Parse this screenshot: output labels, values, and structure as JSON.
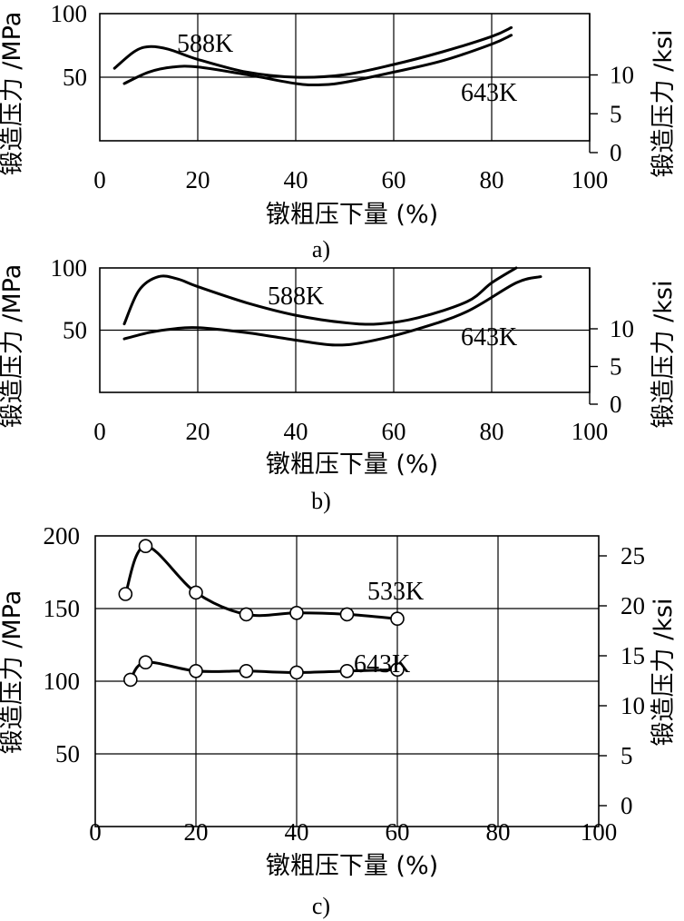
{
  "chart_data": [
    {
      "type": "line",
      "panel_label": "a)",
      "xlabel": "镦粗压下量 (%)",
      "ylabel": "锻造压力 /MPa",
      "ylabel_right": "锻造压力 /ksi",
      "xlim": [
        0,
        100
      ],
      "ylim": [
        0,
        100
      ],
      "x_ticks": [
        "0",
        "20",
        "40",
        "60",
        "80",
        "100"
      ],
      "y_ticks": [
        "50",
        "100"
      ],
      "y_ticks_right": [
        "0",
        "5",
        "10"
      ],
      "grid": true,
      "series": [
        {
          "name": "588K",
          "x": [
            3,
            7,
            10,
            14,
            20,
            30,
            40,
            50,
            60,
            70,
            80,
            84
          ],
          "y": [
            57,
            70,
            74,
            72,
            64,
            54,
            50,
            52,
            60,
            70,
            82,
            89
          ]
        },
        {
          "name": "643K",
          "x": [
            5,
            10,
            15,
            20,
            30,
            40,
            45,
            50,
            60,
            70,
            80,
            84
          ],
          "y": [
            45,
            54,
            58,
            58,
            52,
            45,
            44,
            46,
            54,
            63,
            76,
            83
          ]
        }
      ]
    },
    {
      "type": "line",
      "panel_label": "b)",
      "xlabel": "镦粗压下量 (%)",
      "ylabel": "锻造压力 /MPa",
      "ylabel_right": "锻造压力 /ksi",
      "xlim": [
        0,
        100
      ],
      "ylim": [
        0,
        100
      ],
      "x_ticks": [
        "0",
        "20",
        "40",
        "60",
        "80",
        "100"
      ],
      "y_ticks": [
        "50",
        "100"
      ],
      "y_ticks_right": [
        "0",
        "5",
        "10"
      ],
      "grid": true,
      "series": [
        {
          "name": "588K",
          "x": [
            5,
            8,
            12,
            16,
            20,
            30,
            40,
            50,
            57,
            65,
            75,
            80,
            85
          ],
          "y": [
            55,
            82,
            93,
            91,
            85,
            72,
            62,
            56,
            55,
            60,
            73,
            88,
            100
          ]
        },
        {
          "name": "643K",
          "x": [
            5,
            10,
            15,
            20,
            30,
            40,
            48,
            55,
            65,
            75,
            85,
            90
          ],
          "y": [
            43,
            48,
            51,
            52,
            48,
            42,
            38,
            41,
            51,
            65,
            88,
            93
          ]
        }
      ]
    },
    {
      "type": "line",
      "panel_label": "c)",
      "xlabel": "镦粗压下量 (%)",
      "ylabel": "锻造压力 /MPa",
      "ylabel_right": "锻造压力 /ksi",
      "xlim": [
        0,
        100
      ],
      "ylim": [
        0,
        200
      ],
      "x_ticks": [
        "0",
        "20",
        "40",
        "60",
        "80",
        "100"
      ],
      "y_ticks": [
        "50",
        "100",
        "150",
        "200"
      ],
      "y_ticks_right": [
        "0",
        "5",
        "10",
        "15",
        "20",
        "25"
      ],
      "grid": true,
      "markers": "open-circle",
      "series": [
        {
          "name": "533K",
          "x": [
            6,
            10,
            20,
            30,
            40,
            50,
            60
          ],
          "y": [
            160,
            193,
            161,
            146,
            147,
            146,
            143
          ]
        },
        {
          "name": "643K",
          "x": [
            7,
            10,
            20,
            30,
            40,
            50,
            60
          ],
          "y": [
            101,
            113,
            107,
            107,
            106,
            107,
            108
          ]
        }
      ]
    }
  ]
}
